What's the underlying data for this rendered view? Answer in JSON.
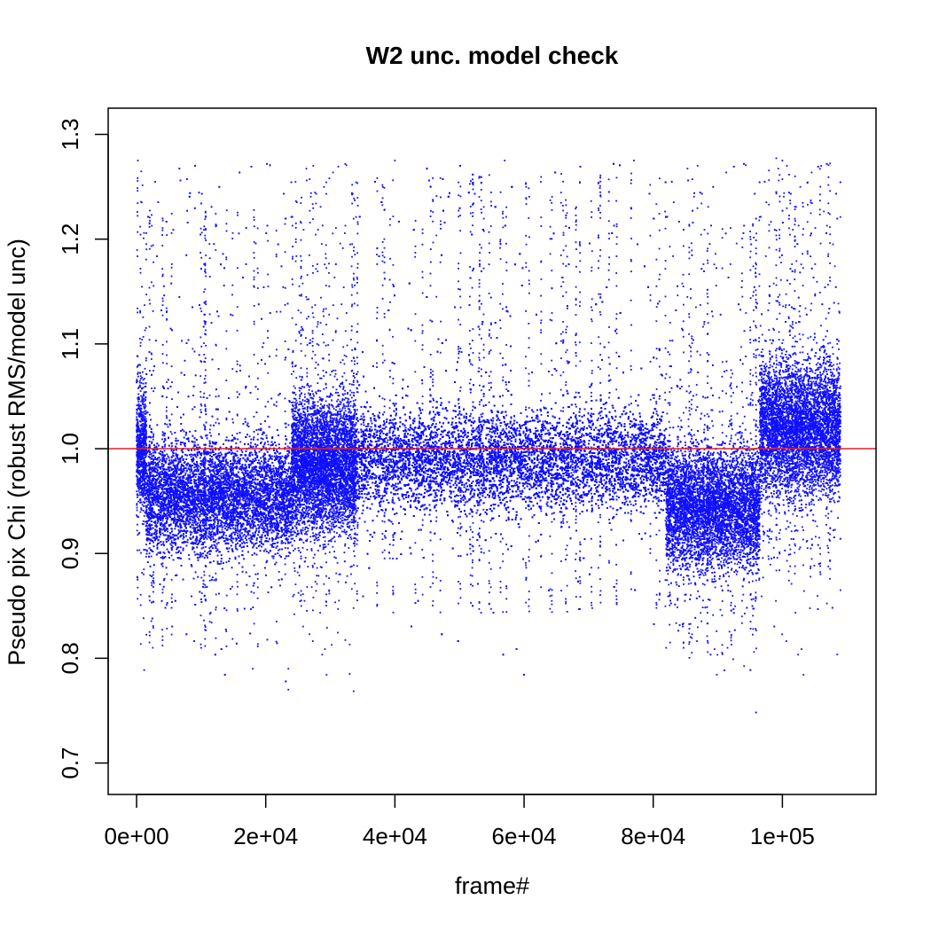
{
  "chart_data": {
    "type": "scatter",
    "title": "W2 unc. model check",
    "xlabel": "frame#",
    "ylabel": "Pseudo pix Chi (robust RMS/model unc)",
    "xlim": [
      -4400,
      114500
    ],
    "ylim": [
      0.67,
      1.325
    ],
    "x_ticks": [
      0,
      20000,
      40000,
      60000,
      80000,
      100000
    ],
    "x_tick_labels": [
      "0e+00",
      "2e+04",
      "4e+04",
      "6e+04",
      "8e+04",
      "1e+05"
    ],
    "y_ticks": [
      0.7,
      0.8,
      0.9,
      1.0,
      1.1,
      1.2,
      1.3
    ],
    "y_tick_labels": [
      "0.7",
      "0.8",
      "0.9",
      "1.0",
      "1.1",
      "1.2",
      "1.3"
    ],
    "reference_line": {
      "y": 1.0,
      "color": "#e0202a"
    },
    "point_color": "#1010ff",
    "grid": false,
    "legend": "none",
    "series": [
      {
        "points_description_note": "dense per-frame scatter",
        "segments": [
          {
            "x_start": 0,
            "x_end": 1500,
            "center": 1.0,
            "spread": 0.05
          },
          {
            "x_start": 1500,
            "x_end": 24000,
            "center": 0.955,
            "spread": 0.045
          },
          {
            "x_start": 24000,
            "x_end": 34000,
            "center": 0.985,
            "spread": 0.055
          },
          {
            "x_start": 34000,
            "x_end": 82000,
            "center": 0.99,
            "spread": 0.04
          },
          {
            "x_start": 82000,
            "x_end": 96500,
            "center": 0.945,
            "spread": 0.05
          },
          {
            "x_start": 96500,
            "x_end": 109000,
            "center": 1.02,
            "spread": 0.055
          }
        ],
        "outlier_range": [
          0.77,
          1.275
        ]
      }
    ],
    "sample_points": [
      [
        200,
        1.275
      ],
      [
        2500,
        0.81
      ],
      [
        10000,
        0.81
      ],
      [
        18000,
        0.79
      ],
      [
        23500,
        0.77
      ],
      [
        23500,
        0.79
      ],
      [
        33000,
        0.785
      ],
      [
        40000,
        1.275
      ],
      [
        57000,
        1.275
      ],
      [
        77000,
        1.275
      ],
      [
        82000,
        0.81
      ],
      [
        91500,
        0.81
      ],
      [
        100000,
        1.275
      ],
      [
        106000,
        1.27
      ],
      [
        109000,
        0.865
      ]
    ]
  }
}
